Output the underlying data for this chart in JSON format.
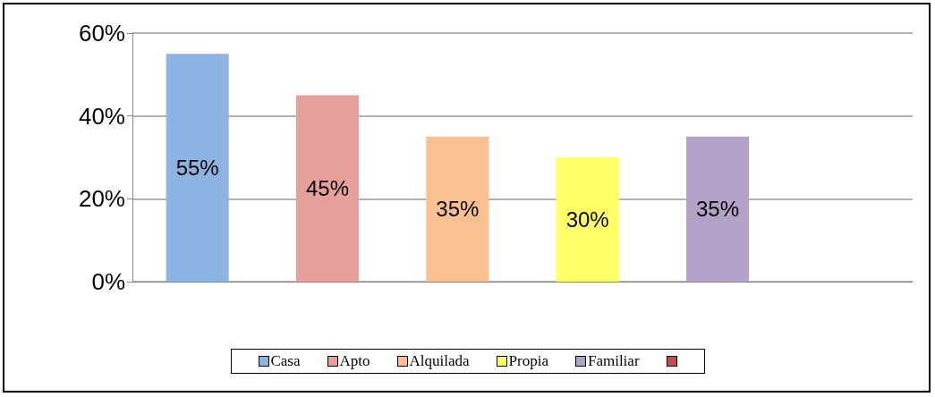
{
  "chart_data": {
    "type": "bar",
    "categories": [
      null,
      null,
      null,
      null,
      null,
      null
    ],
    "series": [
      {
        "name": "Casa",
        "color": "#8db3e2",
        "values": [
          55,
          null,
          null,
          null,
          null,
          null
        ],
        "value_labels": [
          "55%",
          null,
          null,
          null,
          null,
          null
        ]
      },
      {
        "name": "Apto",
        "color": "#e6a09c",
        "values": [
          null,
          45,
          null,
          null,
          null,
          null
        ],
        "value_labels": [
          null,
          "45%",
          null,
          null,
          null,
          null
        ]
      },
      {
        "name": "Alquilada",
        "color": "#fac090",
        "values": [
          null,
          null,
          35,
          null,
          null,
          null
        ],
        "value_labels": [
          null,
          null,
          "35%",
          null,
          null,
          null
        ]
      },
      {
        "name": "Propia",
        "color": "#ffff66",
        "values": [
          null,
          null,
          null,
          30,
          null,
          null
        ],
        "value_labels": [
          null,
          null,
          null,
          "30%",
          null,
          null
        ]
      },
      {
        "name": "Familiar",
        "color": "#b3a2c7",
        "values": [
          null,
          null,
          null,
          null,
          35,
          null
        ],
        "value_labels": [
          null,
          null,
          null,
          null,
          "35%",
          null
        ]
      },
      {
        "color": "#c0504d",
        "values": [
          null,
          null,
          null,
          null,
          null,
          0
        ]
      }
    ],
    "ylim": [
      0,
      60
    ],
    "yticks": [
      {
        "value": 0,
        "label": "0%"
      },
      {
        "value": 20,
        "label": "20%"
      },
      {
        "value": 40,
        "label": "40%"
      },
      {
        "value": 60,
        "label": "60%"
      }
    ],
    "grid": "y",
    "legend": "bottom"
  }
}
